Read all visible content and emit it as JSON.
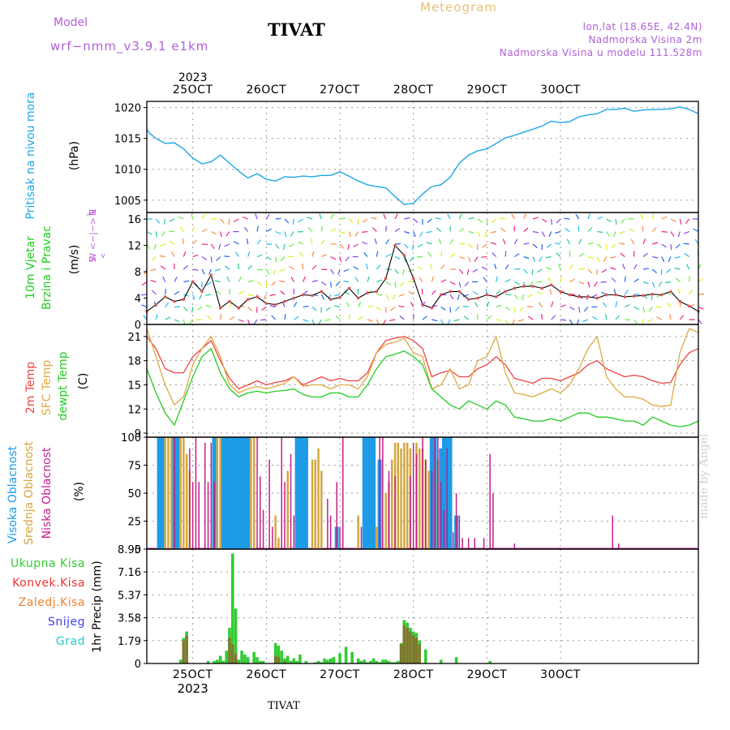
{
  "header": {
    "model_label": "Model",
    "model_name": "wrf−nmm_v3.9.1  e1km",
    "station": "TIVAT",
    "product": "Meteogram",
    "lonlat": "lon,lat (18.65E, 42.4N)",
    "elevation": "Nadmorska Visina 2m",
    "model_elevation": "Nadmorska Visina u modelu 111.528m"
  },
  "footer": {
    "station": "TIVAT",
    "watermark": "made by Angel"
  },
  "colors": {
    "pressure": "#1ea7e6",
    "temp2m": "#ee4444",
    "sfc_temp": "#e0a840",
    "dewpt": "#22cc22",
    "cloud_high": "#1e9be6",
    "cloud_mid": "#d4a640",
    "cloud_low": "#c41e8c",
    "precip_total": "#33cc33",
    "precip_conv": "#ee3333",
    "precip_strat": "#f08030",
    "snow": "#4040ee",
    "hail": "#22cccc",
    "wind_dir_label": "#c060e0",
    "gridline": "#999999"
  },
  "chart_data": [
    {
      "id": "pressure",
      "type": "line",
      "ylabel": [
        "Pritisak na nivou mora",
        "(hPa)"
      ],
      "ylim": [
        1003,
        1021
      ],
      "yticks": [
        1005,
        1010,
        1015,
        1020
      ],
      "top_axis": {
        "year": "2023",
        "ticks": [
          "25OCT",
          "26OCT",
          "27OCT",
          "28OCT",
          "29OCT",
          "30OCT"
        ]
      },
      "series": [
        {
          "x": [
            0,
            1,
            3,
            6,
            9,
            12,
            15,
            18,
            21,
            24,
            27,
            30,
            33,
            36,
            39,
            42,
            45,
            48,
            51,
            54,
            57,
            60,
            63,
            66,
            69,
            72,
            75,
            78,
            81,
            84,
            87,
            90,
            93,
            96,
            99,
            102,
            105,
            108,
            111,
            114,
            117,
            120,
            123,
            126,
            129,
            132,
            135,
            138,
            141,
            144,
            147,
            150,
            153,
            156,
            159,
            162,
            165,
            168,
            171,
            174,
            177,
            180
          ],
          "values": [
            1016.5,
            1015.8,
            1015.0,
            1014.2,
            1014.3,
            1013.3,
            1011.8,
            1010.9,
            1011.2,
            1012.3,
            1011.0,
            1009.7,
            1008.6,
            1009.3,
            1008.4,
            1008.1,
            1008.8,
            1008.7,
            1008.9,
            1008.8,
            1009.0,
            1009.0,
            1009.6,
            1008.9,
            1008.1,
            1007.5,
            1007.2,
            1007.0,
            1005.6,
            1004.3,
            1004.5,
            1006.0,
            1007.2,
            1007.5,
            1008.7,
            1011.0,
            1012.3,
            1013.0,
            1013.3,
            1014.2,
            1015.1,
            1015.5,
            1016.0,
            1016.5,
            1017.0,
            1017.8,
            1017.6,
            1017.7,
            1018.5,
            1018.8,
            1019.0,
            1019.7,
            1019.7,
            1019.9,
            1019.4,
            1019.6,
            1019.7,
            1019.7,
            1019.8,
            1020.1,
            1019.7,
            1019.0
          ]
        }
      ]
    },
    {
      "id": "wind",
      "type": "line",
      "ylabel": [
        "10m Vjetar",
        "Brzina i Pravac",
        "(m/s)"
      ],
      "dir_legend": [
        "N",
        "^",
        "W  <−|−>  E",
        "v",
        "S"
      ],
      "ylim": [
        0,
        17
      ],
      "yticks": [
        0,
        4,
        8,
        12,
        16
      ],
      "series": [
        {
          "name": "speed",
          "x": [
            0,
            3,
            6,
            9,
            12,
            15,
            18,
            21,
            24,
            27,
            30,
            33,
            36,
            39,
            42,
            45,
            48,
            51,
            54,
            57,
            60,
            63,
            66,
            69,
            72,
            75,
            78,
            81,
            84,
            87,
            90,
            93,
            96,
            99,
            102,
            105,
            108,
            111,
            114,
            117,
            120,
            123,
            126,
            129,
            132,
            135,
            138,
            141,
            144,
            147,
            150,
            153,
            156,
            159,
            162,
            165,
            168,
            171,
            174,
            177,
            180
          ],
          "values": [
            2.0,
            3.0,
            4.2,
            3.5,
            3.8,
            6.5,
            5.0,
            7.5,
            2.5,
            3.5,
            2.5,
            3.8,
            4.2,
            3.2,
            3.0,
            3.5,
            4.0,
            4.5,
            4.4,
            5.0,
            3.8,
            4.1,
            5.5,
            4.0,
            4.8,
            5.0,
            7.0,
            12.0,
            10.5,
            7.0,
            3.0,
            2.5,
            4.5,
            5.0,
            5.0,
            3.8,
            4.0,
            4.5,
            4.2,
            5.0,
            5.5,
            5.8,
            5.8,
            5.5,
            6.0,
            5.0,
            4.5,
            4.2,
            4.2,
            4.0,
            4.5,
            4.5,
            4.2,
            4.3,
            4.4,
            4.6,
            4.5,
            5.0,
            3.5,
            2.8,
            2.0
          ]
        }
      ]
    },
    {
      "id": "temperature",
      "type": "line",
      "ylabel": [
        "2m Temp",
        "SFC Temp",
        "dewpt Temp",
        "(C)"
      ],
      "ylim": [
        8.5,
        22.5
      ],
      "yticks": [
        9,
        12,
        15,
        18,
        21
      ],
      "x": [
        0,
        3,
        6,
        9,
        12,
        15,
        18,
        21,
        24,
        27,
        30,
        33,
        36,
        39,
        42,
        45,
        48,
        51,
        54,
        57,
        60,
        63,
        66,
        69,
        72,
        75,
        78,
        81,
        84,
        87,
        90,
        93,
        96,
        99,
        102,
        105,
        108,
        111,
        114,
        117,
        120,
        123,
        126,
        129,
        132,
        135,
        138,
        141,
        144,
        147,
        150,
        153,
        156,
        159,
        162,
        165,
        168,
        171,
        174,
        177,
        180
      ],
      "series": [
        {
          "name": "2m Temp",
          "values": [
            21.0,
            19.5,
            17.0,
            16.5,
            16.5,
            18.5,
            19.5,
            20.5,
            18.0,
            15.8,
            14.5,
            15.0,
            15.5,
            15.0,
            15.3,
            15.5,
            16.0,
            15.0,
            15.5,
            16.0,
            15.5,
            15.8,
            15.5,
            15.5,
            16.5,
            19.0,
            20.5,
            20.8,
            21.0,
            20.5,
            19.5,
            16.0,
            16.5,
            16.8,
            16.0,
            16.0,
            17.0,
            17.5,
            18.5,
            17.5,
            15.8,
            15.5,
            15.2,
            15.8,
            15.8,
            15.5,
            16.0,
            16.5,
            17.5,
            18.0,
            17.0,
            16.5,
            16.0,
            16.2,
            16.0,
            15.5,
            15.2,
            15.3,
            17.5,
            19.0,
            19.5
          ]
        },
        {
          "name": "SFC Temp",
          "values": [
            22.0,
            18.5,
            15.0,
            12.5,
            13.5,
            17.5,
            19.5,
            21.0,
            18.5,
            15.0,
            14.0,
            14.5,
            14.8,
            14.5,
            14.8,
            15.2,
            16.0,
            14.8,
            15.0,
            15.0,
            14.5,
            15.0,
            15.0,
            14.5,
            16.0,
            19.0,
            20.0,
            20.3,
            20.8,
            19.0,
            18.5,
            14.5,
            15.0,
            17.0,
            14.5,
            15.0,
            18.0,
            18.5,
            21.0,
            16.5,
            14.0,
            13.8,
            13.5,
            14.0,
            14.5,
            14.0,
            15.0,
            17.0,
            19.5,
            21.0,
            16.0,
            14.5,
            13.5,
            13.5,
            13.2,
            12.5,
            12.3,
            12.5,
            19.0,
            22.0,
            21.5
          ]
        },
        {
          "name": "dewpt Temp",
          "values": [
            17.0,
            14.0,
            11.5,
            10.0,
            13.0,
            16.0,
            18.5,
            19.5,
            16.5,
            14.5,
            13.5,
            14.0,
            14.2,
            14.0,
            14.2,
            14.3,
            14.5,
            13.8,
            13.5,
            13.5,
            14.0,
            14.0,
            13.5,
            13.5,
            15.0,
            17.0,
            18.5,
            18.8,
            19.2,
            18.5,
            17.5,
            14.5,
            13.5,
            12.5,
            12.0,
            13.0,
            12.5,
            12.0,
            13.0,
            12.5,
            11.0,
            10.8,
            10.5,
            10.5,
            10.8,
            10.5,
            11.0,
            11.5,
            11.5,
            11.0,
            11.0,
            10.8,
            10.5,
            10.5,
            10.0,
            11.0,
            10.5,
            10.0,
            9.8,
            10.0,
            10.5
          ]
        }
      ]
    },
    {
      "id": "clouds",
      "type": "bar",
      "ylabel": [
        "Visoka Oblacnost",
        "Srednja Oblacnost",
        "Niska Oblacnost",
        "(%)"
      ],
      "ylim": [
        0,
        100
      ],
      "yticks": [
        0,
        25,
        50,
        75,
        100
      ],
      "series": [
        {
          "name": "Visoka Oblacnost",
          "x": [
            4,
            5,
            9,
            10,
            22,
            25,
            26,
            27,
            28,
            29,
            30,
            31,
            32,
            33,
            49,
            50,
            51,
            52,
            62,
            71,
            72,
            73,
            74,
            76,
            93,
            94,
            96,
            97,
            98,
            99,
            101
          ],
          "values": [
            100,
            100,
            100,
            100,
            100,
            100,
            100,
            100,
            100,
            100,
            100,
            100,
            100,
            100,
            100,
            100,
            100,
            100,
            20,
            100,
            100,
            100,
            100,
            80,
            100,
            100,
            90,
            100,
            100,
            100,
            30
          ]
        },
        {
          "name": "Srednja Oblacnost",
          "x": [
            6,
            7,
            8,
            11,
            12,
            13,
            14,
            23,
            24,
            34,
            35,
            42,
            43,
            46,
            54,
            55,
            56,
            57,
            69,
            75,
            78,
            79,
            80,
            81,
            82,
            83,
            84,
            85,
            86,
            88,
            89,
            90,
            91,
            92,
            95
          ],
          "values": [
            100,
            100,
            100,
            100,
            100,
            85,
            70,
            100,
            100,
            100,
            100,
            30,
            10,
            70,
            80,
            80,
            90,
            70,
            30,
            20,
            50,
            60,
            80,
            95,
            95,
            90,
            95,
            95,
            90,
            95,
            90,
            90,
            80,
            70,
            80
          ]
        },
        {
          "name": "Niska Oblacnost",
          "x": [
            9,
            14,
            15,
            16,
            17,
            19,
            20,
            21,
            22,
            36,
            37,
            38,
            40,
            41,
            44,
            45,
            47,
            48,
            59,
            60,
            62,
            63,
            64,
            70,
            76,
            77,
            79,
            81,
            86,
            87,
            88,
            90,
            91,
            93,
            94,
            95,
            96,
            97,
            98,
            100,
            101,
            102,
            103,
            105,
            107,
            110,
            112,
            113,
            120,
            152,
            154
          ],
          "values": [
            100,
            90,
            60,
            100,
            60,
            95,
            60,
            95,
            60,
            100,
            65,
            35,
            80,
            20,
            100,
            60,
            85,
            30,
            45,
            30,
            60,
            20,
            100,
            20,
            100,
            100,
            70,
            65,
            65,
            95,
            85,
            100,
            80,
            70,
            100,
            100,
            60,
            35,
            90,
            15,
            50,
            30,
            10,
            10,
            10,
            10,
            85,
            50,
            5,
            30,
            5
          ]
        }
      ]
    },
    {
      "id": "precip",
      "type": "bar",
      "ylabel": [
        "1hr Precip (mm)"
      ],
      "legend": [
        "Ukupna Kisa",
        "Konvek.Kisa",
        "Zaledj.Kisa",
        "Snijeg",
        "Grad"
      ],
      "ylim": [
        0,
        8.95
      ],
      "yticks": [
        0,
        1.79,
        3.58,
        5.37,
        7.16,
        8.95
      ],
      "bottom_axis": {
        "ticks": [
          "25OCT",
          "26OCT",
          "27OCT",
          "28OCT",
          "29OCT",
          "30OCT"
        ],
        "year": "2023"
      },
      "series": [
        {
          "name": "Ukupna Kisa",
          "x": [
            11,
            12,
            13,
            20,
            22,
            23,
            24,
            25,
            26,
            27,
            28,
            29,
            30,
            31,
            32,
            33,
            35,
            36,
            37,
            38,
            42,
            43,
            44,
            45,
            46,
            47,
            48,
            49,
            50,
            52,
            55,
            56,
            57,
            58,
            59,
            60,
            61,
            63,
            65,
            67,
            69,
            70,
            71,
            72,
            73,
            74,
            75,
            76,
            77,
            78,
            79,
            80,
            81,
            82,
            83,
            84,
            85,
            86,
            87,
            88,
            89,
            91,
            96,
            101,
            112
          ],
          "values": [
            0.3,
            2.0,
            2.5,
            0.2,
            0.2,
            0.3,
            0.6,
            0.2,
            1.0,
            2.8,
            8.6,
            4.3,
            0.3,
            1.0,
            0.7,
            0.5,
            0.9,
            0.5,
            0.2,
            0.2,
            1.6,
            1.4,
            1.0,
            0.4,
            0.6,
            0.2,
            0.4,
            0.2,
            0.7,
            0.2,
            0.1,
            0.2,
            0.1,
            0.4,
            0.3,
            0.4,
            0.5,
            0.8,
            1.3,
            0.9,
            0.4,
            0.2,
            0.3,
            0.1,
            0.2,
            0.4,
            0.2,
            0.1,
            0.3,
            0.3,
            0.2,
            0.1,
            0.1,
            0.2,
            1.6,
            3.4,
            3.2,
            2.8,
            2.5,
            2.4,
            1.8,
            1.1,
            0.3,
            0.5,
            0.2
          ]
        },
        {
          "name": "Konvek.Kisa",
          "x": [
            12,
            13,
            27,
            28,
            29,
            42,
            43,
            45,
            83,
            84,
            85,
            86,
            87,
            88,
            89
          ],
          "values": [
            1.8,
            2.2,
            2.0,
            1.5,
            0.8,
            0.6,
            0.5,
            0.2,
            1.5,
            3.0,
            2.8,
            2.5,
            2.2,
            2.0,
            1.5
          ]
        }
      ]
    }
  ]
}
